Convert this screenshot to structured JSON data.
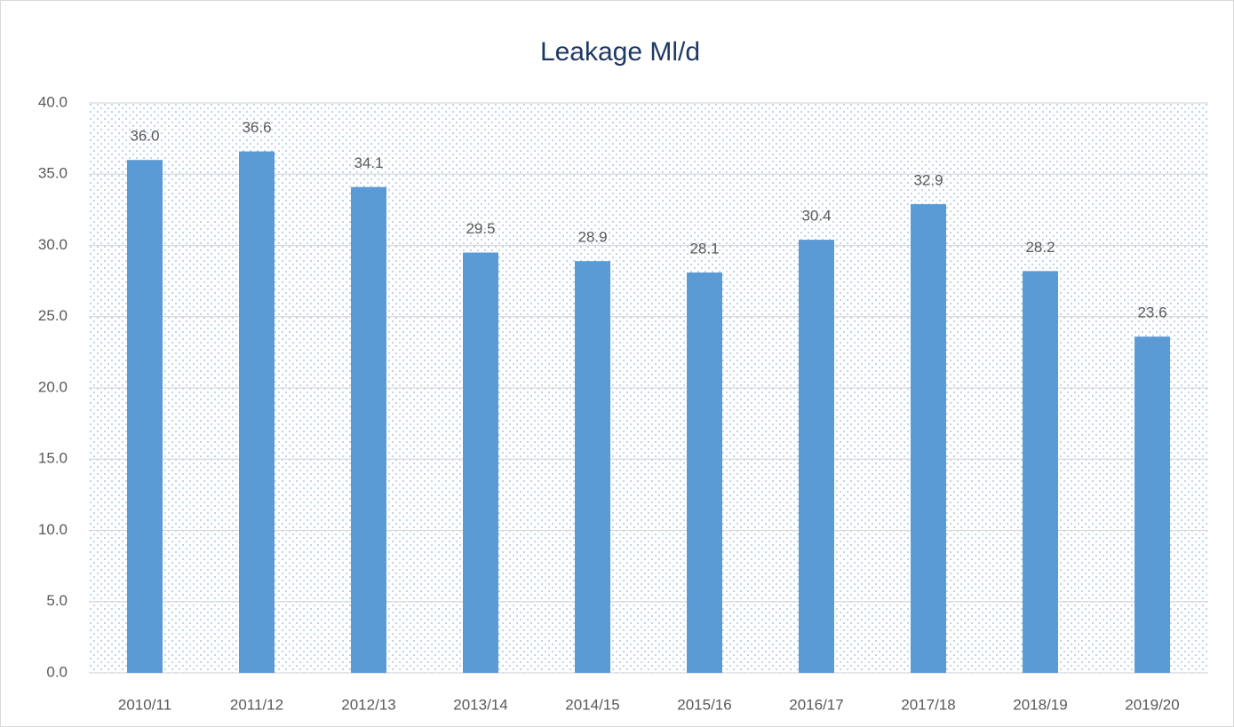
{
  "chart_data": {
    "type": "bar",
    "title": "Leakage Ml/d",
    "categories": [
      "2010/11",
      "2011/12",
      "2012/13",
      "2013/14",
      "2014/15",
      "2015/16",
      "2016/17",
      "2017/18",
      "2018/19",
      "2019/20"
    ],
    "values": [
      36.0,
      36.6,
      34.1,
      29.5,
      28.9,
      28.1,
      30.4,
      32.9,
      28.2,
      23.6
    ],
    "value_labels": [
      "36.0",
      "36.6",
      "34.1",
      "29.5",
      "28.9",
      "28.1",
      "30.4",
      "32.9",
      "28.2",
      "23.6"
    ],
    "color": "#5b9bd5",
    "ylim": [
      0,
      40
    ],
    "yticks": [
      {
        "value": 0,
        "label": "0.0"
      },
      {
        "value": 5,
        "label": "5.0"
      },
      {
        "value": 10,
        "label": "10.0"
      },
      {
        "value": 15,
        "label": "15.0"
      },
      {
        "value": 20,
        "label": "20.0"
      },
      {
        "value": 25,
        "label": "25.0"
      },
      {
        "value": 30,
        "label": "30.0"
      },
      {
        "value": 35,
        "label": "35.0"
      },
      {
        "value": 40,
        "label": "40.0"
      }
    ],
    "grid": true
  }
}
